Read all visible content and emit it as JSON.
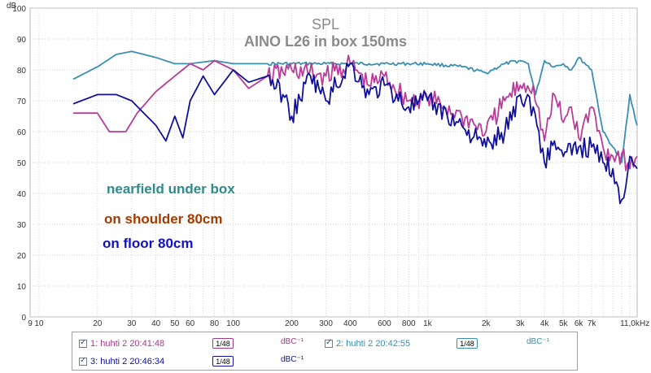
{
  "chart_data": {
    "type": "line",
    "title": "SPL",
    "subtitle": "AINO L26 in box 150ms",
    "ylabel": "dB",
    "xlabel": "Hz",
    "x_scale": "log",
    "xlim": [
      9,
      12000
    ],
    "ylim": [
      0,
      100
    ],
    "y_ticks": [
      "0",
      "10",
      "20",
      "30",
      "40",
      "50",
      "60",
      "70",
      "80",
      "90",
      "100"
    ],
    "x_ticks": [
      {
        "v": 9,
        "label": "9"
      },
      {
        "v": 10,
        "label": "10"
      },
      {
        "v": 20,
        "label": "20"
      },
      {
        "v": 30,
        "label": "30"
      },
      {
        "v": 40,
        "label": "40"
      },
      {
        "v": 50,
        "label": "50"
      },
      {
        "v": 60,
        "label": "60"
      },
      {
        "v": 80,
        "label": "80"
      },
      {
        "v": 100,
        "label": "100"
      },
      {
        "v": 200,
        "label": "200"
      },
      {
        "v": 300,
        "label": "300"
      },
      {
        "v": 400,
        "label": "400"
      },
      {
        "v": 600,
        "label": "600"
      },
      {
        "v": 800,
        "label": "800"
      },
      {
        "v": 1000,
        "label": "1k"
      },
      {
        "v": 2000,
        "label": "2k"
      },
      {
        "v": 3000,
        "label": "3k"
      },
      {
        "v": 4000,
        "label": "4k"
      },
      {
        "v": 5000,
        "label": "5k"
      },
      {
        "v": 6000,
        "label": "6k"
      },
      {
        "v": 7000,
        "label": "7k"
      },
      {
        "v": 11000,
        "label": "11,0k"
      }
    ],
    "grid": true,
    "annotations": [
      {
        "text": "nearfield under box",
        "color": "#2e8b8b"
      },
      {
        "text": "on shoulder 80cm",
        "color": "#a33a00"
      },
      {
        "text": "on floor 80cm",
        "color": "#1010cc"
      }
    ],
    "series": [
      {
        "name": "2: huhti 2 20:42:55",
        "color": "#3a8fb0",
        "x": [
          15,
          20,
          25,
          30,
          40,
          50,
          60,
          80,
          100,
          150,
          200,
          300,
          400,
          500,
          600,
          800,
          1000,
          1500,
          2000,
          2500,
          3000,
          3300,
          3600,
          4000,
          4500,
          5000,
          5500,
          6000,
          7000,
          8000,
          9000,
          10000,
          11000,
          12000
        ],
        "y": [
          77,
          81,
          85,
          86,
          84,
          82,
          82,
          83,
          82,
          82,
          82,
          82,
          82,
          82,
          82,
          82,
          82,
          81,
          79,
          82,
          83,
          82,
          72,
          83,
          81,
          82,
          80,
          84,
          80,
          60,
          55,
          50,
          72,
          62
        ]
      },
      {
        "name": "1: huhti 2 20:41:48",
        "color": "#b83c98",
        "x": [
          15,
          20,
          23,
          28,
          32,
          40,
          50,
          60,
          70,
          80,
          100,
          120,
          150,
          200,
          300,
          400,
          500,
          600,
          800,
          1000,
          1500,
          2000,
          2500,
          3000,
          3500,
          4000,
          4500,
          5000,
          5500,
          6000,
          7000,
          8000,
          9000,
          10000,
          11000,
          12000
        ],
        "y": [
          66,
          66,
          60,
          60,
          66,
          73,
          78,
          82,
          80,
          83,
          80,
          74,
          78,
          80,
          78,
          82,
          75,
          78,
          70,
          71,
          65,
          60,
          70,
          75,
          75,
          57,
          72,
          63,
          68,
          58,
          68,
          55,
          52,
          53,
          48,
          52
        ]
      },
      {
        "name": "3: huhti 2 20:46:34",
        "color": "#10109a",
        "x": [
          15,
          20,
          25,
          30,
          40,
          45,
          50,
          55,
          60,
          70,
          80,
          100,
          120,
          150,
          180,
          200,
          250,
          300,
          400,
          500,
          600,
          800,
          1000,
          1500,
          2000,
          2500,
          3000,
          3500,
          4000,
          4500,
          5000,
          6000,
          7000,
          8000,
          9000,
          10000,
          11000,
          12000
        ],
        "y": [
          69,
          72,
          72,
          70,
          62,
          57,
          65,
          58,
          70,
          78,
          72,
          80,
          76,
          78,
          72,
          65,
          78,
          70,
          82,
          72,
          75,
          68,
          70,
          62,
          55,
          60,
          72,
          68,
          50,
          57,
          52,
          55,
          55,
          50,
          48,
          38,
          52,
          48
        ]
      }
    ]
  },
  "legend": [
    {
      "label": "1: huhti 2 20:41:48",
      "color": "#a03c88",
      "smoothing": "1/48",
      "unit": "dBC⁻¹"
    },
    {
      "label": "2: huhti 2 20:42:55",
      "color": "#3a8fb0",
      "smoothing": "1/48",
      "unit": "dBC⁻¹"
    },
    {
      "label": "3: huhti 2 20:46:34",
      "color": "#10109a",
      "smoothing": "1/48",
      "unit": "dBC⁻¹"
    }
  ]
}
